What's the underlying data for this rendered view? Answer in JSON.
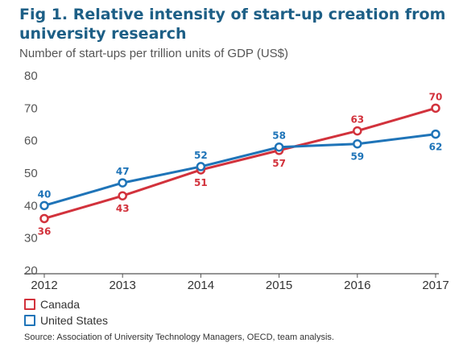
{
  "chart_data": {
    "type": "line",
    "title": "Fig 1. Relative intensity of start-up creation from university research",
    "subtitle": "Number of start-ups per trillion units of GDP (US$)",
    "x": [
      2012,
      2013,
      2014,
      2015,
      2016,
      2017
    ],
    "yticks": [
      20,
      30,
      40,
      50,
      60,
      70,
      80
    ],
    "ylim": [
      20,
      80
    ],
    "series": [
      {
        "name": "Canada",
        "color": "#d2323c",
        "values": [
          36,
          43,
          51,
          57,
          63,
          70
        ],
        "label_position": [
          "below",
          "below",
          "below",
          "below",
          "above",
          "above"
        ]
      },
      {
        "name": "United States",
        "color": "#1f74b8",
        "values": [
          40,
          47,
          52,
          58,
          59,
          62
        ],
        "label_position": [
          "above",
          "above",
          "above",
          "above",
          "below",
          "below"
        ]
      }
    ],
    "grid": false,
    "legend": "bottom-left",
    "source": "Source: Association of University Technology Managers, OECD, team analysis."
  }
}
